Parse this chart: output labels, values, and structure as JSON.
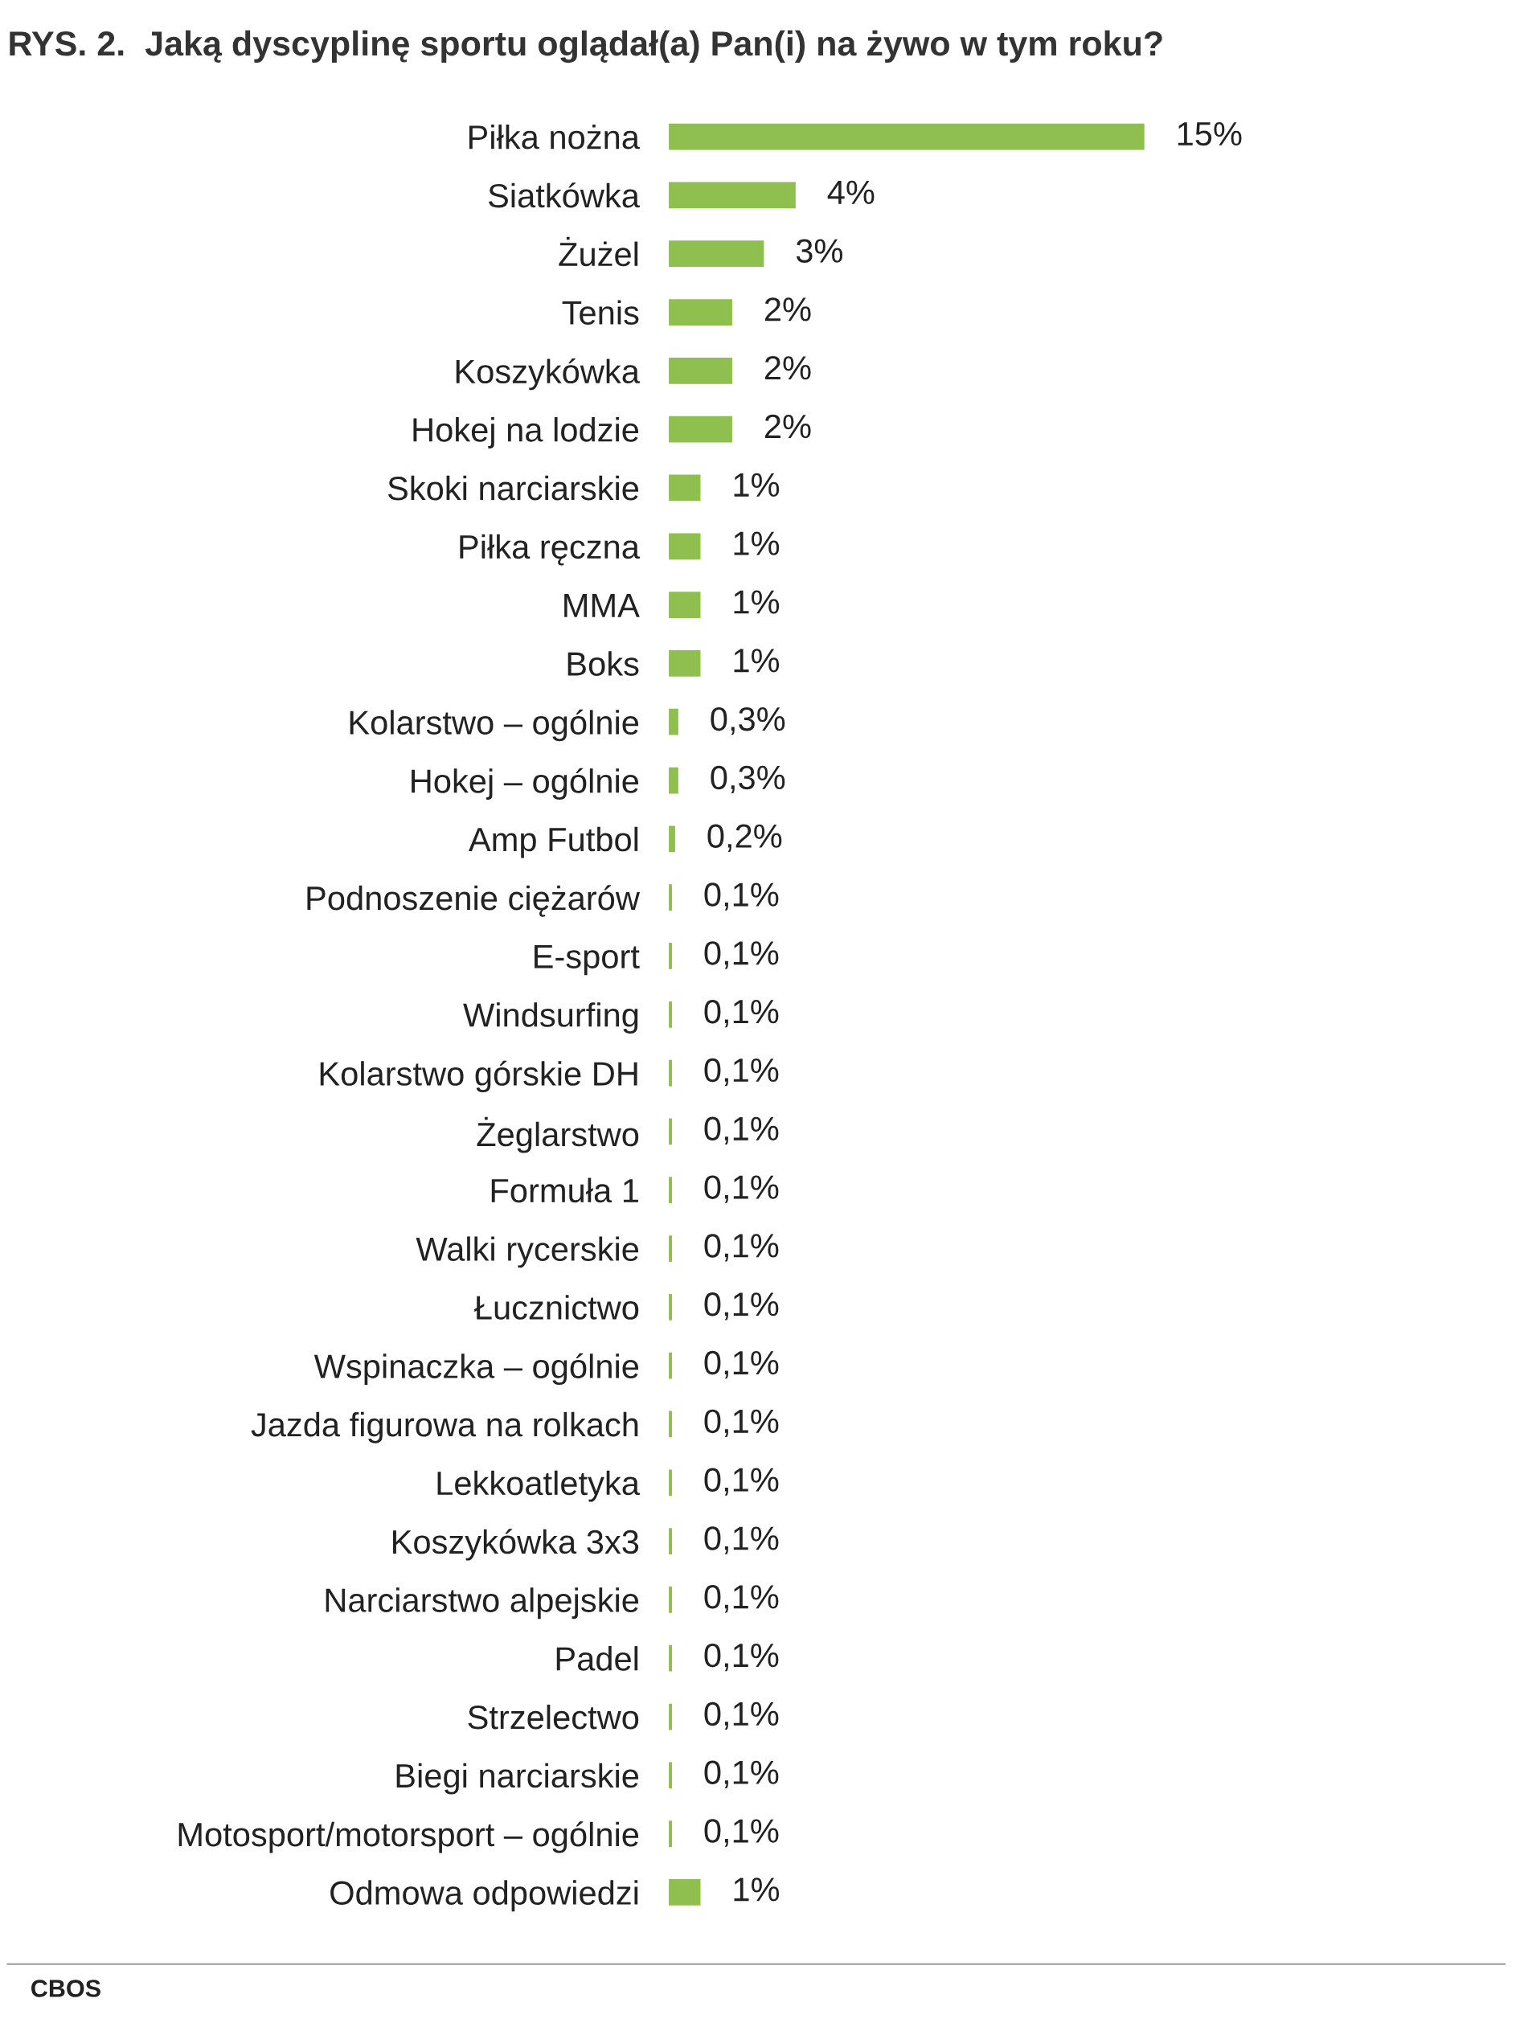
{
  "chart_data": {
    "type": "bar",
    "orientation": "horizontal",
    "title": "RYS. 2.  Jaką dyscyplinę sportu oglądał(a) Pan(i) na żywo w tym roku?",
    "categories": [
      "Piłka nożna",
      "Siatkówka",
      "Żużel",
      "Tenis",
      "Koszykówka",
      "Hokej na lodzie",
      "Skoki narciarskie",
      "Piłka ręczna",
      "MMA",
      "Boks",
      "Kolarstwo – ogólnie",
      "Hokej – ogólnie",
      "Amp Futbol",
      "Podnoszenie ciężarów",
      "E-sport",
      "Windsurfing",
      "Kolarstwo górskie DH",
      "Żeglarstwo",
      "Formuła 1",
      "Walki rycerskie",
      "Łucznictwo",
      "Wspinaczka – ogólnie",
      "Jazda figurowa na rolkach",
      "Lekkoatletyka",
      "Koszykówka 3x3",
      "Narciarstwo alpejskie",
      "Padel",
      "Strzelectwo",
      "Biegi narciarskie",
      "Motosport/motorsport – ogólnie",
      "Odmowa odpowiedzi"
    ],
    "values": [
      15,
      4,
      3,
      2,
      2,
      2,
      1,
      1,
      1,
      1,
      0.3,
      0.3,
      0.2,
      0.1,
      0.1,
      0.1,
      0.1,
      0.1,
      0.1,
      0.1,
      0.1,
      0.1,
      0.1,
      0.1,
      0.1,
      0.1,
      0.1,
      0.1,
      0.1,
      0.1,
      1
    ],
    "value_labels": [
      "15%",
      "4%",
      "3%",
      "2%",
      "2%",
      "2%",
      "1%",
      "1%",
      "1%",
      "1%",
      "0,3%",
      "0,3%",
      "0,2%",
      "0,1%",
      "0,1%",
      "0,1%",
      "0,1%",
      "0,1%",
      "0,1%",
      "0,1%",
      "0,1%",
      "0,1%",
      "0,1%",
      "0,1%",
      "0,1%",
      "0,1%",
      "0,1%",
      "0,1%",
      "0,1%",
      "0,1%",
      "1%"
    ],
    "color": "#8fc04f",
    "grid": false,
    "legend": false,
    "annotations": [
      "CBOS"
    ]
  }
}
